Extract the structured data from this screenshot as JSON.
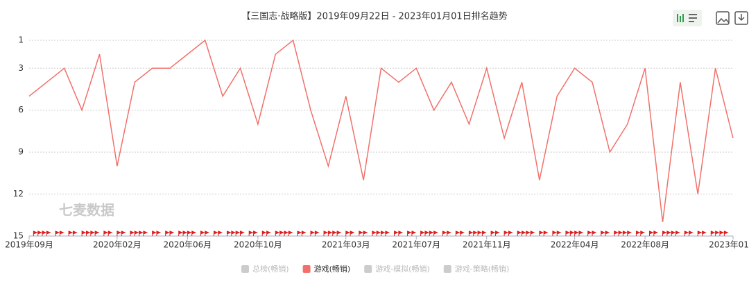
{
  "chart_data": {
    "type": "line",
    "title": "【三国志·战略版】2019年09月22日 - 2023年01月01日排名趋势",
    "watermark": "七麦数据",
    "x": [
      "2019-09",
      "2019-10",
      "2019-11",
      "2019-12",
      "2020-01",
      "2020-02",
      "2020-03",
      "2020-04",
      "2020-05",
      "2020-06",
      "2020-07",
      "2020-08",
      "2020-09",
      "2020-10",
      "2020-11",
      "2020-12",
      "2021-01",
      "2021-02",
      "2021-03",
      "2021-04",
      "2021-05",
      "2021-06",
      "2021-07",
      "2021-08",
      "2021-09",
      "2021-10",
      "2021-11",
      "2021-12",
      "2022-01",
      "2022-02",
      "2022-03",
      "2022-04",
      "2022-05",
      "2022-06",
      "2022-07",
      "2022-08",
      "2022-09",
      "2022-10",
      "2022-11",
      "2022-12",
      "2023-01"
    ],
    "series": [
      {
        "name": "游戏(畅销)",
        "color": "#f1706a",
        "values": [
          5,
          4,
          3,
          6,
          2,
          10,
          4,
          3,
          3,
          2,
          1,
          5,
          3,
          7,
          2,
          1,
          6,
          10,
          5,
          11,
          3,
          4,
          3,
          6,
          4,
          7,
          3,
          8,
          4,
          11,
          5,
          3,
          4,
          9,
          7,
          3,
          14,
          4,
          12,
          3,
          8
        ]
      }
    ],
    "legend": [
      {
        "name": "总榜(畅销)",
        "color": "#cccccc"
      },
      {
        "name": "游戏-模拟(畅销)",
        "color": "#cccccc"
      },
      {
        "name": "游戏-策略(畅销)",
        "color": "#cccccc"
      }
    ],
    "ylim": [
      1,
      15
    ],
    "inverted": true,
    "yticks": [
      1,
      3,
      6,
      9,
      12,
      15
    ],
    "grid": true,
    "xticks": [
      {
        "value": "2019-09",
        "label": "2019年09月"
      },
      {
        "value": "2020-02",
        "label": "2020年02月"
      },
      {
        "value": "2020-06",
        "label": "2020年06月"
      },
      {
        "value": "2020-10",
        "label": "2020年10月"
      },
      {
        "value": "2021-03",
        "label": "2021年03月"
      },
      {
        "value": "2021-07",
        "label": "2021年07月"
      },
      {
        "value": "2021-11",
        "label": "2021年11月"
      },
      {
        "value": "2022-04",
        "label": "2022年04月"
      },
      {
        "value": "2022-08",
        "label": "2022年08月"
      },
      {
        "value": "2023-01",
        "label": "2023年01月"
      }
    ]
  }
}
